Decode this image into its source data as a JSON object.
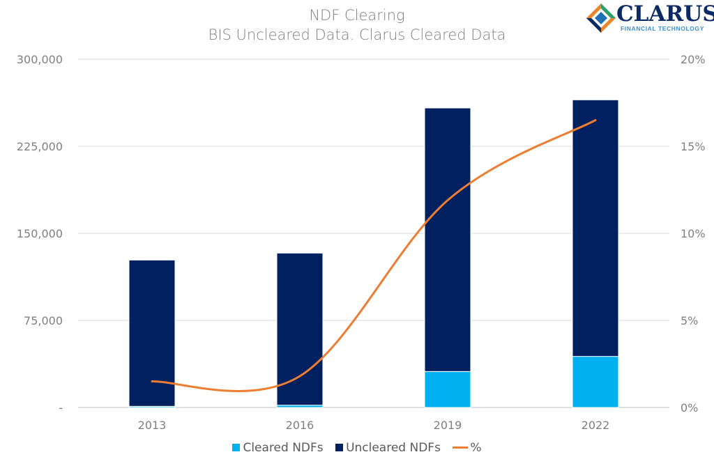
{
  "header": {
    "title": "NDF Clearing",
    "subtitle": "BIS Uncleared Data. Clarus Cleared Data"
  },
  "logo": {
    "name": "CLARUS",
    "tagline": "FINANCIAL TECHNOLOGY"
  },
  "colors": {
    "cleared": "#00b0f0",
    "uncleared": "#002060",
    "percent_line": "#ed7d31",
    "grid": "#d9d9d9",
    "text": "#7f7f7f"
  },
  "chart_data": {
    "type": "bar",
    "stacked": true,
    "categories": [
      "2013",
      "2016",
      "2019",
      "2022"
    ],
    "series": [
      {
        "name": "Cleared NDFs",
        "values": [
          1000,
          2000,
          31000,
          44000
        ],
        "axis": "left"
      },
      {
        "name": "Uncleared NDFs",
        "values": [
          126000,
          131000,
          227000,
          221000
        ],
        "axis": "left"
      }
    ],
    "line_series": {
      "name": "%",
      "values": [
        1.5,
        1.8,
        11.9,
        16.5
      ],
      "axis": "right"
    },
    "left_axis": {
      "min": 0,
      "max": 300000,
      "ticks": [
        "-",
        "75,000",
        "150,000",
        "225,000",
        "300,000"
      ]
    },
    "right_axis": {
      "min": 0,
      "max": 20,
      "ticks": [
        "0%",
        "5%",
        "10%",
        "15%",
        "20%"
      ]
    },
    "grid": true,
    "legend": "bottom"
  }
}
